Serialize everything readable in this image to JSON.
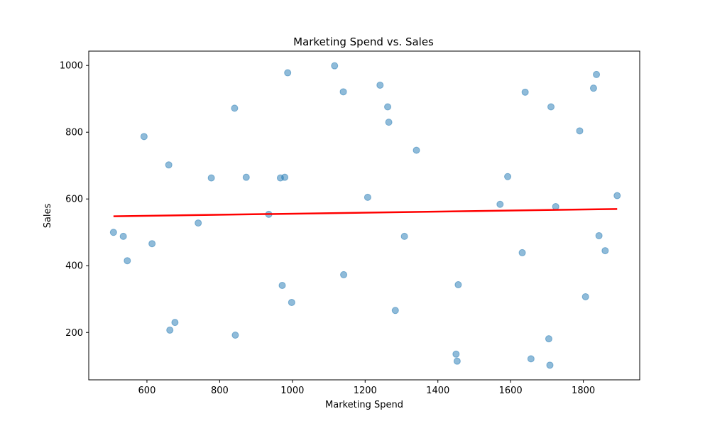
{
  "chart_data": {
    "type": "scatter",
    "title": "Marketing Spend vs. Sales",
    "xlabel": "Marketing Spend",
    "ylabel": "Sales",
    "xlim": [
      440,
      1955
    ],
    "ylim": [
      58,
      1043
    ],
    "xticks": [
      600,
      800,
      1000,
      1200,
      1400,
      1600,
      1800
    ],
    "yticks": [
      200,
      400,
      600,
      800,
      1000
    ],
    "grid": false,
    "legend": "none",
    "series": [
      {
        "kind": "scatter",
        "color": "#1f77b4",
        "alpha": 0.5,
        "points": [
          [
            508,
            500
          ],
          [
            535,
            488
          ],
          [
            546,
            415
          ],
          [
            592,
            787
          ],
          [
            614,
            466
          ],
          [
            660,
            702
          ],
          [
            663,
            207
          ],
          [
            677,
            230
          ],
          [
            741,
            528
          ],
          [
            777,
            663
          ],
          [
            841,
            872
          ],
          [
            843,
            192
          ],
          [
            873,
            665
          ],
          [
            935,
            554
          ],
          [
            967,
            663
          ],
          [
            972,
            341
          ],
          [
            979,
            665
          ],
          [
            987,
            978
          ],
          [
            998,
            290
          ],
          [
            1116,
            999
          ],
          [
            1140,
            921
          ],
          [
            1141,
            373
          ],
          [
            1207,
            605
          ],
          [
            1241,
            941
          ],
          [
            1262,
            876
          ],
          [
            1265,
            830
          ],
          [
            1283,
            266
          ],
          [
            1308,
            488
          ],
          [
            1341,
            746
          ],
          [
            1450,
            135
          ],
          [
            1453,
            114
          ],
          [
            1456,
            343
          ],
          [
            1571,
            584
          ],
          [
            1592,
            667
          ],
          [
            1632,
            439
          ],
          [
            1640,
            920
          ],
          [
            1656,
            121
          ],
          [
            1705,
            181
          ],
          [
            1708,
            102
          ],
          [
            1711,
            876
          ],
          [
            1724,
            577
          ],
          [
            1790,
            804
          ],
          [
            1806,
            307
          ],
          [
            1828,
            932
          ],
          [
            1836,
            973
          ],
          [
            1843,
            490
          ],
          [
            1860,
            445
          ],
          [
            1893,
            610
          ]
        ]
      },
      {
        "kind": "line",
        "color": "#ff0000",
        "x": [
          508,
          1893
        ],
        "y": [
          548,
          570
        ]
      }
    ]
  }
}
